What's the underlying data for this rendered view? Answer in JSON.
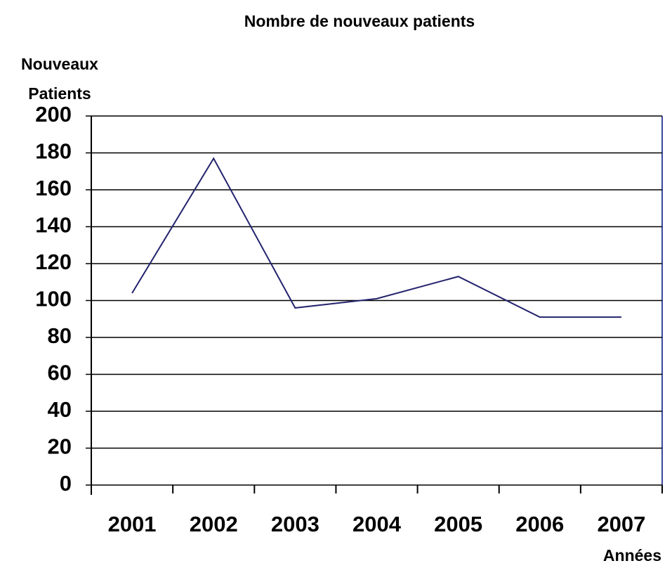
{
  "chart_data": {
    "type": "line",
    "title": "Nombre de nouveaux patients",
    "y_label": "Nouveaux Patients",
    "x_label": "Années",
    "categories": [
      "2001",
      "2002",
      "2003",
      "2004",
      "2005",
      "2006",
      "2007"
    ],
    "values": [
      104,
      177,
      96,
      101,
      113,
      91,
      91
    ],
    "color": "#23236e",
    "ylim": [
      0,
      200
    ],
    "yticks": [
      0,
      20,
      40,
      60,
      80,
      100,
      120,
      140,
      160,
      180,
      200
    ],
    "grid": true
  }
}
